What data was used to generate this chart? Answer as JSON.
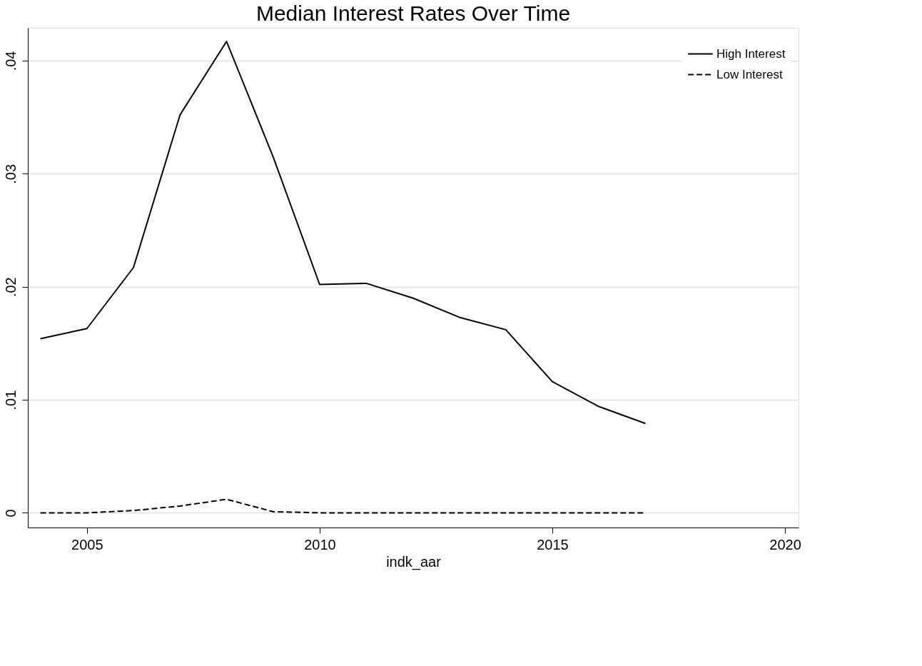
{
  "chart_data": {
    "type": "line",
    "title": "Median Interest Rates Over Time",
    "xlabel": "indk_aar",
    "x": [
      2004,
      2005,
      2006,
      2007,
      2008,
      2009,
      2010,
      2011,
      2012,
      2013,
      2014,
      2015,
      2016,
      2017
    ],
    "series": [
      {
        "name": "High Interest",
        "color": "#000000",
        "line_style": "solid",
        "values": [
          0.0154,
          0.0163,
          0.0217,
          0.0352,
          0.0417,
          0.0315,
          0.0202,
          0.0203,
          0.019,
          0.0173,
          0.0162,
          0.0116,
          0.0094,
          0.0079
        ]
      },
      {
        "name": "Low Interest",
        "color": "#000000",
        "line_style": "dashed",
        "values": [
          0,
          0,
          0.0002,
          0.0006,
          0.0012,
          0.0001,
          0,
          0,
          0,
          0,
          0,
          0,
          0,
          0
        ]
      }
    ],
    "xlim": [
      2003.73,
      2020.29
    ],
    "xticks": [
      2005,
      2010,
      2015,
      2020
    ],
    "ylim": [
      -0.0013,
      0.0429
    ],
    "yticks": [
      0,
      {
        "value": 0.01,
        "label": ".01"
      },
      {
        "value": 0.02,
        "label": ".02"
      },
      {
        "value": 0.03,
        "label": ".03"
      },
      {
        "value": 0.04,
        "label": ".04"
      }
    ],
    "grid": "y",
    "legend": "top right",
    "marker": "none"
  }
}
